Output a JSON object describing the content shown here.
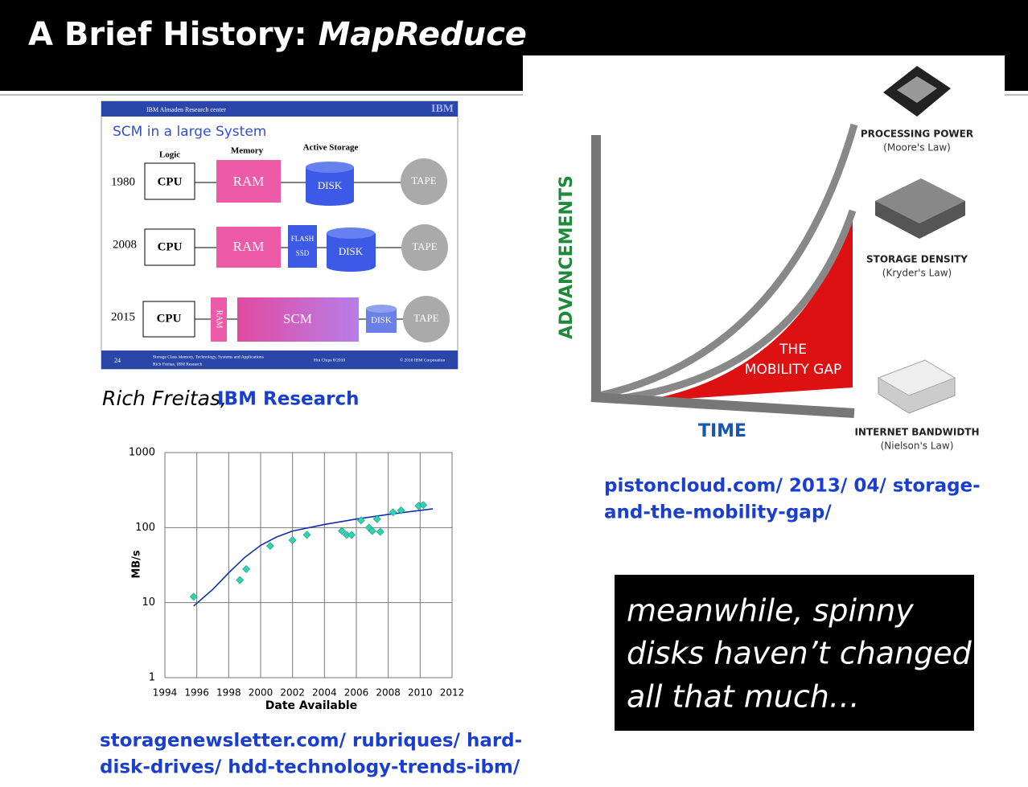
{
  "header": {
    "title": "A Brief History:",
    "title_emphasis": "MapReduce"
  },
  "ibm_slide": {
    "org": "IBM Almaden Research center",
    "logo": "IBM",
    "heading": "SCM in a large System",
    "columns": [
      "Logic",
      "Memory",
      "Active Storage"
    ],
    "rows": [
      {
        "year": "1980",
        "cpu": "CPU",
        "memory": "RAM",
        "storage": "DISK",
        "tape": "TAPE"
      },
      {
        "year": "2008",
        "cpu": "CPU",
        "memory": "RAM",
        "flash": "FLASH",
        "ssd": "SSD",
        "storage": "DISK",
        "tape": "TAPE"
      },
      {
        "year": "2015",
        "cpu": "CPU",
        "ram": "RAM",
        "memory": "SCM",
        "storage": "DISK",
        "tape": "TAPE"
      }
    ],
    "footer": {
      "page": "24",
      "talk": "Storage Class Memory, Technology, Systems and Applications",
      "author": "Rich Freitas, IBM Research",
      "venue": "Hot Chips 8/2010",
      "copyright": "© 2010 IBM Corporation"
    }
  },
  "caption": {
    "author": "Rich Freitas,",
    "org": "IBM Research"
  },
  "hdd_chart": {
    "type": "scatter",
    "ylabel": "MB/s",
    "xlabel": "Date Available",
    "xlim": [
      1994,
      2012
    ],
    "ylim": [
      1,
      1000
    ],
    "log_y": true,
    "grid": true,
    "xticks": [
      1994,
      1996,
      1998,
      2000,
      2002,
      2004,
      2006,
      2008,
      2010,
      2012
    ],
    "yticks": [
      1,
      10,
      100,
      1000
    ],
    "point_color": "#2ed3b0",
    "trend_color": "#1030b0",
    "points": {
      "x": [
        1995.8,
        1998.7,
        1999.1,
        2000.6,
        2002,
        2002.9,
        2005.1,
        2005.4,
        2005.7,
        2006.3,
        2006.8,
        2007,
        2007.3,
        2007.5,
        2008.3,
        2008.8,
        2009.9,
        2010.2
      ],
      "y": [
        12,
        20,
        28,
        57,
        68,
        80,
        90,
        80,
        80,
        125,
        100,
        90,
        130,
        88,
        160,
        170,
        195,
        200
      ]
    },
    "trend": {
      "x": [
        1995.8,
        1997,
        1998,
        1999,
        2000,
        2001,
        2002,
        2004,
        2006,
        2008,
        2010.8
      ],
      "y": [
        9,
        15,
        25,
        40,
        58,
        75,
        90,
        110,
        130,
        150,
        178
      ]
    }
  },
  "hdd_link": {
    "lines": [
      "storagenewsletter.com/ rubriques/ hard-",
      "disk-drives/ hdd-technology-trends-ibm/"
    ]
  },
  "mobility": {
    "y_axis": "ADVANCEMENTS",
    "x_axis": "TIME",
    "gap": [
      "THE",
      "MOBILITY GAP"
    ],
    "labels": [
      {
        "name": "PROCESSING POWER",
        "law": "(Moore's Law)"
      },
      {
        "name": "STORAGE DENSITY",
        "law": "(Kryder's Law)"
      },
      {
        "name": "INTERNET BANDWIDTH",
        "law": "(Nielson's Law)"
      }
    ]
  },
  "mobility_link": {
    "lines": [
      "pistoncloud.com/ 2013/ 04/ storage-",
      "and-the-mobility-gap/"
    ]
  },
  "callout": {
    "lines": [
      "meanwhile, spinny",
      "disks haven’t changed",
      "all that much…"
    ]
  }
}
